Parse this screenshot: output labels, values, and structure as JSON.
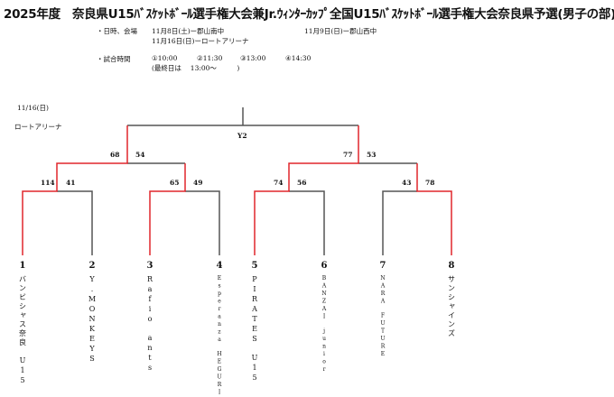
{
  "title": "2025年度　奈良県U15ﾊﾞｽｹｯﾄﾎﾞｰﾙ選手権大会兼Jr.ｳｨﾝﾀｰｶｯﾌﾟ全国U15ﾊﾞｽｹｯﾄﾎﾞｰﾙ選手権大会奈良県予選(男子の部)",
  "schedule": {
    "label": "・日時、会場",
    "line1": "11月8日(土)ー郡山南中",
    "line1b": "11月9日(日)ー郡山西中",
    "line2": "11月16日(日)ーロートアリーナ"
  },
  "times": {
    "label": "・試合時間",
    "t1": "①10:00",
    "t2": "②11:30",
    "t3": "③13:00",
    "t4": "④14:30",
    "final_note": "(最終日は　 13:00～　　　)"
  },
  "bracket": {
    "date": "11/16(日)",
    "venue": "ロートアリーナ",
    "final_label": "Y2",
    "scores": {
      "r1_m1": [
        "114",
        "41"
      ],
      "r1_m2": [
        "65",
        "49"
      ],
      "r1_m3": [
        "74",
        "56"
      ],
      "r1_m4": [
        "43",
        "78"
      ],
      "semi_1": [
        "68",
        "54"
      ],
      "semi_2": [
        "77",
        "53"
      ]
    },
    "teams": [
      {
        "seed": "1",
        "name": "バンビシャス奈良　U15"
      },
      {
        "seed": "2",
        "name": "Y.MONKEYS"
      },
      {
        "seed": "3",
        "name": "Rafio　ants"
      },
      {
        "seed": "4",
        "name": "Esperanza　HEGURI"
      },
      {
        "seed": "5",
        "name": "PIRATES　U15"
      },
      {
        "seed": "6",
        "name": "BANZAI　junior"
      },
      {
        "seed": "7",
        "name": "NARA　FUTURE"
      },
      {
        "seed": "8",
        "name": "サンシャインズ"
      }
    ],
    "colors": {
      "winner_line": "#e0262b",
      "line": "#555555"
    }
  }
}
